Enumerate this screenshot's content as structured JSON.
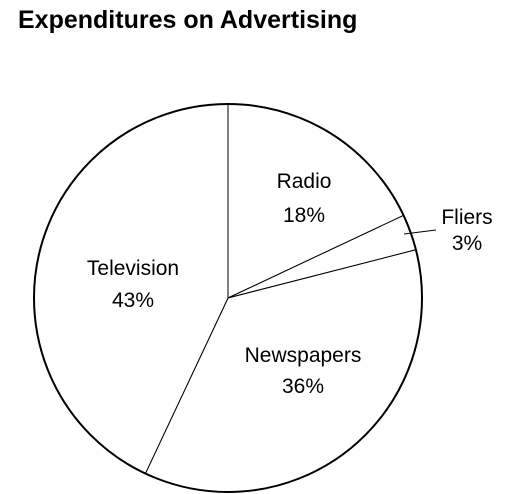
{
  "chart_data": {
    "type": "pie",
    "title": "Expenditures on Advertising",
    "slices": [
      {
        "label": "Radio",
        "value": 18,
        "display": "18%"
      },
      {
        "label": "Fliers",
        "value": 3,
        "display": "3%"
      },
      {
        "label": "Newspapers",
        "value": 36,
        "display": "36%"
      },
      {
        "label": "Television",
        "value": 43,
        "display": "43%"
      }
    ],
    "start_angle": "12 o'clock",
    "direction": "clockwise",
    "colors": {
      "fill": "#ffffff",
      "stroke": "#000000"
    },
    "legend": "none"
  }
}
